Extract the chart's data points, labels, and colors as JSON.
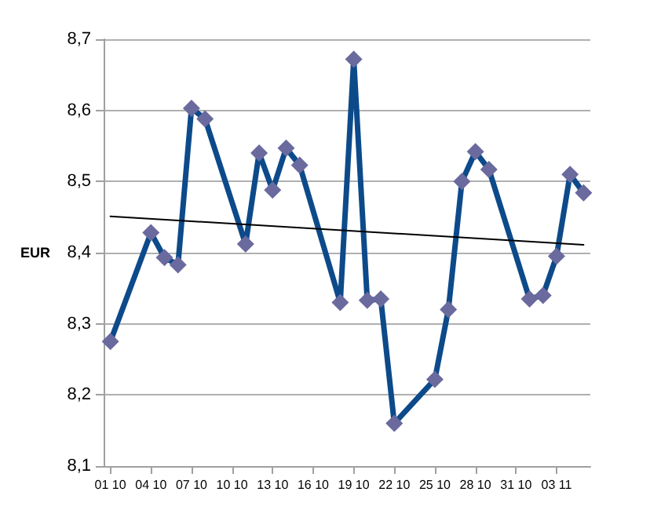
{
  "chart_data": {
    "type": "line",
    "ylabel": "EUR",
    "x": [
      "--10-01",
      "--10-04",
      "--10-05",
      "--10-06",
      "--10-07",
      "--10-08",
      "--10-11",
      "--10-12",
      "--10-13",
      "--10-14",
      "--10-15",
      "--10-18",
      "--10-19",
      "--10-20",
      "--10-21",
      "--10-22",
      "--10-25",
      "--10-26",
      "--10-27",
      "--10-28",
      "--10-29",
      "--11-01",
      "--11-02",
      "--11-03",
      "--11-04",
      "--11-05"
    ],
    "series": [
      {
        "color": "#0d4a8a",
        "marker": "diamond",
        "values": [
          8.275,
          8.428,
          8.393,
          8.383,
          8.603,
          8.588,
          8.412,
          8.54,
          8.488,
          8.547,
          8.523,
          8.33,
          8.672,
          8.333,
          8.335,
          8.16,
          8.222,
          8.32,
          8.5,
          8.542,
          8.517,
          8.335,
          8.34,
          8.395,
          8.51,
          8.484
        ]
      },
      {
        "color": "#000000",
        "marker": "none",
        "x": [
          "--10-01",
          "--11-05"
        ],
        "values": [
          8.451,
          8.411
        ]
      }
    ],
    "xlim": [
      "--09-30T12:00",
      "--11-05T12:00"
    ],
    "xticks": [
      {
        "value": "--10-01",
        "label": "01 10"
      },
      {
        "value": "--10-04",
        "label": "04 10"
      },
      {
        "value": "--10-07",
        "label": "07 10"
      },
      {
        "value": "--10-10",
        "label": "10 10"
      },
      {
        "value": "--10-13",
        "label": "13 10"
      },
      {
        "value": "--10-16",
        "label": "16 10"
      },
      {
        "value": "--10-19",
        "label": "19 10"
      },
      {
        "value": "--10-22",
        "label": "22 10"
      },
      {
        "value": "--10-25",
        "label": "25 10"
      },
      {
        "value": "--10-28",
        "label": "28 10"
      },
      {
        "value": "--10-31",
        "label": "31 10"
      },
      {
        "value": "--11-03",
        "label": "03 11"
      }
    ],
    "ylim": [
      8.1,
      8.7
    ],
    "yticks": [
      {
        "value": 8.1,
        "label": "8,1"
      },
      {
        "value": 8.2,
        "label": "8,2"
      },
      {
        "value": 8.3,
        "label": "8,3"
      },
      {
        "value": 8.4,
        "label": "8,4"
      },
      {
        "value": 8.5,
        "label": "8,5"
      },
      {
        "value": 8.6,
        "label": "8,6"
      },
      {
        "value": 8.7,
        "label": "8,7"
      }
    ],
    "grid": "y",
    "line_style": "solid"
  }
}
